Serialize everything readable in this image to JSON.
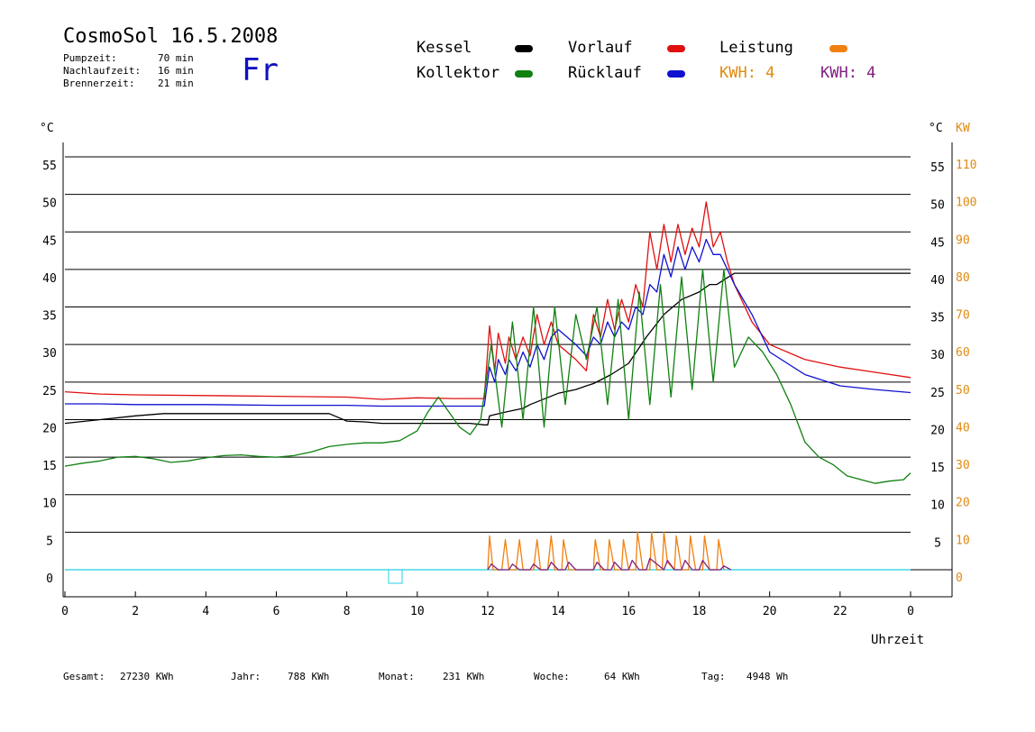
{
  "header": {
    "title": "CosmoSol 16.5.2008",
    "info": [
      {
        "label": "Pumpzeit:",
        "value": "70 min"
      },
      {
        "label": "Nachlaufzeit:",
        "value": "16 min"
      },
      {
        "label": "Brennerzeit:",
        "value": "21 min"
      }
    ],
    "day": "Fr"
  },
  "legend": {
    "items": [
      {
        "label": "Kessel",
        "color": "#000000"
      },
      {
        "label": "Vorlauf",
        "color": "#e01010"
      },
      {
        "label": "Leistung",
        "color": "#f08010"
      },
      {
        "label": "Kollektor",
        "color": "#108010"
      },
      {
        "label": "Rücklauf",
        "color": "#1010d0"
      }
    ],
    "kwh_orange": "KWH: 4",
    "kwh_purple": "KWH: 4",
    "kwh_orange_color": "#e08a10",
    "kwh_purple_color": "#802080"
  },
  "axes": {
    "left_unit": "°C",
    "right_unit": "°C",
    "right_unit2": "KW",
    "xlabel": "Uhrzeit"
  },
  "footer": [
    {
      "label": "Gesamt:",
      "value": "27230 KWh"
    },
    {
      "label": "Jahr:",
      "value": "788 KWh"
    },
    {
      "label": "Monat:",
      "value": "231 KWh"
    },
    {
      "label": "Woche:",
      "value": "64 KWh"
    },
    {
      "label": "Tag:",
      "value": "4948 Wh"
    }
  ],
  "chart_data": {
    "type": "line",
    "x_ticks": [
      "0",
      "2",
      "4",
      "6",
      "8",
      "10",
      "12",
      "14",
      "16",
      "18",
      "20",
      "22",
      "0"
    ],
    "xlim": [
      0,
      24
    ],
    "ylim": [
      0,
      55
    ],
    "y_ticks_left": [
      0,
      5,
      10,
      15,
      20,
      25,
      30,
      35,
      40,
      45,
      50,
      55
    ],
    "y_ticks_right": [
      5,
      10,
      15,
      20,
      25,
      30,
      35,
      40,
      45,
      50,
      55
    ],
    "y2_ticks": [
      0,
      10,
      20,
      30,
      40,
      50,
      60,
      70,
      80,
      90,
      100,
      110
    ],
    "y2_lim": [
      0,
      110
    ],
    "grid": true,
    "series": [
      {
        "name": "Kessel",
        "color": "#000000",
        "x": [
          0,
          1,
          2,
          2.8,
          3,
          5,
          7,
          7.5,
          8,
          8.5,
          9,
          10,
          11,
          11.5,
          11.9,
          12.0,
          12.05,
          12.5,
          13,
          13.2,
          14,
          14.5,
          14.8,
          15,
          15.5,
          16,
          16.5,
          17,
          17.5,
          18,
          18.3,
          18.5,
          19,
          20,
          21,
          22,
          23,
          24
        ],
        "y": [
          19.5,
          20,
          20.5,
          20.8,
          20.8,
          20.8,
          20.8,
          20.8,
          19.8,
          19.7,
          19.5,
          19.5,
          19.5,
          19.5,
          19.3,
          19.3,
          20.5,
          21,
          21.5,
          22,
          23.5,
          24,
          24.5,
          24.8,
          26,
          27.5,
          31,
          34,
          36,
          37,
          38,
          38,
          39.5,
          39.5,
          39.5,
          39.5,
          39.5,
          39.5
        ]
      },
      {
        "name": "Vorlauf",
        "color": "#e01010",
        "x": [
          0,
          1,
          2,
          4,
          6,
          8,
          9,
          10,
          11,
          11.9,
          12.05,
          12.2,
          12.3,
          12.5,
          12.6,
          12.8,
          13,
          13.2,
          13.4,
          13.6,
          13.8,
          14,
          14.5,
          14.8,
          15,
          15.2,
          15.4,
          15.6,
          15.8,
          16,
          16.2,
          16.4,
          16.6,
          16.8,
          17,
          17.2,
          17.4,
          17.6,
          17.8,
          18,
          18.2,
          18.4,
          18.6,
          18.8,
          19,
          19.5,
          20,
          21,
          22,
          23,
          24
        ],
        "y": [
          23.7,
          23.4,
          23.3,
          23.2,
          23.1,
          23.0,
          22.7,
          22.9,
          22.8,
          22.8,
          32.5,
          26.5,
          31.5,
          27.5,
          31,
          28,
          31,
          28.5,
          34,
          30,
          33,
          30,
          28,
          26.5,
          34,
          31,
          36,
          32,
          36,
          33,
          38,
          35,
          45,
          40,
          46,
          41,
          46,
          42,
          45.5,
          43,
          49,
          43,
          45,
          41,
          38,
          33,
          30,
          28,
          27,
          26.3,
          25.6
        ]
      },
      {
        "name": "Rücklauf",
        "color": "#1010d0",
        "x": [
          0,
          1,
          2,
          4,
          6,
          8,
          9,
          10,
          11,
          11.9,
          12.05,
          12.2,
          12.3,
          12.5,
          12.6,
          12.8,
          13,
          13.2,
          13.4,
          13.6,
          13.8,
          14,
          14.5,
          14.8,
          15,
          15.2,
          15.4,
          15.6,
          15.8,
          16,
          16.2,
          16.4,
          16.6,
          16.8,
          17,
          17.2,
          17.4,
          17.6,
          17.8,
          18,
          18.2,
          18.4,
          18.6,
          18.8,
          19,
          19.5,
          20,
          21,
          22,
          23,
          24
        ],
        "y": [
          22.1,
          22.1,
          22.0,
          22.0,
          21.9,
          21.9,
          21.8,
          21.8,
          21.8,
          21.8,
          27,
          25,
          28,
          26,
          28,
          26.5,
          29,
          27,
          30,
          28,
          31,
          32,
          30,
          28.5,
          31,
          30,
          33,
          31,
          33,
          32,
          35,
          34,
          38,
          37,
          42,
          39,
          43,
          40,
          43,
          41,
          44,
          42,
          42,
          40,
          38,
          34,
          29,
          26,
          24.5,
          24.0,
          23.6
        ]
      },
      {
        "name": "Kollektor",
        "color": "#108010",
        "x": [
          0,
          0.5,
          1,
          1.5,
          2,
          2.5,
          3,
          3.5,
          4,
          4.5,
          5,
          5.5,
          6,
          6.5,
          7,
          7.5,
          8,
          8.5,
          9,
          9.5,
          10,
          10.3,
          10.6,
          10.9,
          11.2,
          11.5,
          11.8,
          12.1,
          12.4,
          12.7,
          13,
          13.3,
          13.6,
          13.9,
          14.2,
          14.5,
          14.8,
          15.1,
          15.4,
          15.7,
          16,
          16.3,
          16.6,
          16.9,
          17.2,
          17.5,
          17.8,
          18.1,
          18.4,
          18.7,
          19,
          19.4,
          19.8,
          20.2,
          20.6,
          21,
          21.4,
          21.8,
          22.2,
          22.6,
          23,
          23.4,
          23.8,
          24
        ],
        "y": [
          13.8,
          14.2,
          14.5,
          15,
          15.1,
          14.8,
          14.3,
          14.5,
          14.9,
          15.2,
          15.3,
          15.1,
          15.0,
          15.2,
          15.7,
          16.4,
          16.7,
          16.9,
          16.9,
          17.2,
          18.5,
          21,
          23,
          21,
          19,
          18,
          20,
          30,
          19,
          33,
          20,
          35,
          19,
          35,
          22,
          34,
          28,
          35,
          22,
          36,
          20,
          37,
          22,
          38,
          23,
          39,
          24,
          40,
          25,
          40,
          27,
          31,
          29,
          26,
          22,
          17,
          15,
          14,
          12.5,
          12,
          11.5,
          11.8,
          12.0,
          12.9
        ]
      },
      {
        "name": "Leistung",
        "color": "#f08010",
        "axis": "y2",
        "x": [
          12.0,
          12.05,
          12.15,
          12.4,
          12.5,
          12.6,
          12.8,
          12.9,
          13.0,
          13.3,
          13.4,
          13.5,
          13.7,
          13.8,
          13.9,
          14.1,
          14.15,
          14.3,
          15.0,
          15.05,
          15.2,
          15.4,
          15.45,
          15.6,
          15.8,
          15.85,
          16.0,
          16.2,
          16.25,
          16.4,
          16.6,
          16.65,
          16.8,
          16.95,
          17.0,
          17.1,
          17.3,
          17.35,
          17.5,
          17.7,
          17.75,
          17.9,
          18.1,
          18.15,
          18.3,
          18.5,
          18.55,
          18.7
        ],
        "y": [
          0,
          9,
          0,
          0,
          8,
          0,
          0,
          8,
          0,
          0,
          8,
          0,
          0,
          9,
          0,
          0,
          8,
          0,
          0,
          8,
          0,
          0,
          8,
          0,
          0,
          8,
          0,
          0,
          10,
          0,
          0,
          10,
          0,
          0,
          10,
          2,
          0,
          9,
          0,
          0,
          9,
          0,
          0,
          9,
          0,
          0,
          8,
          0
        ]
      },
      {
        "name": "KWH",
        "color": "#802080",
        "axis": "y2",
        "x": [
          12.0,
          12.1,
          12.3,
          12.6,
          12.7,
          12.9,
          13.2,
          13.3,
          13.5,
          13.7,
          13.8,
          14.0,
          14.2,
          14.3,
          14.5,
          15.0,
          15.1,
          15.3,
          15.5,
          15.6,
          15.8,
          16.0,
          16.1,
          16.3,
          16.5,
          16.6,
          16.8,
          17.0,
          17.1,
          17.3,
          17.5,
          17.6,
          17.8,
          18.0,
          18.1,
          18.3,
          18.6,
          18.7,
          18.9
        ],
        "y": [
          0,
          1.5,
          0,
          0,
          1.5,
          0,
          0,
          1.5,
          0,
          0,
          2,
          0,
          0,
          2,
          0,
          0,
          2,
          0,
          0,
          2,
          0,
          0,
          2.5,
          0,
          0,
          3,
          1.5,
          0,
          2.5,
          0,
          0,
          2.5,
          0,
          0,
          2.5,
          0,
          0,
          1,
          0
        ]
      }
    ]
  }
}
